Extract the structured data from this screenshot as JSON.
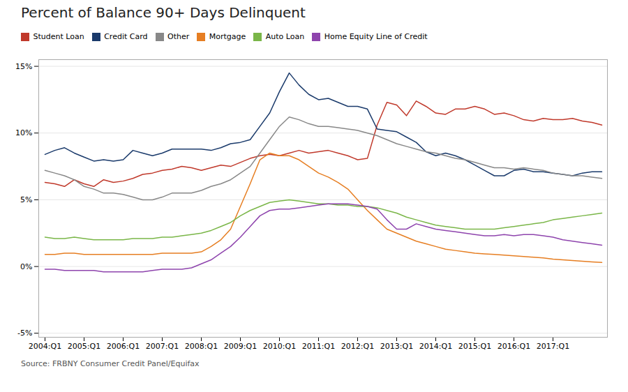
{
  "chart_data": {
    "type": "line",
    "title": "Percent of Balance 90+ Days Delinquent",
    "source": "Source: FRBNY Consumer Credit Panel/Equifax",
    "categories": [
      "2004:Q1",
      null,
      null,
      null,
      "2005:Q1",
      null,
      null,
      null,
      "2006:Q1",
      null,
      null,
      null,
      "2007:Q1",
      null,
      null,
      null,
      "2008:Q1",
      null,
      null,
      null,
      "2009:Q1",
      null,
      null,
      null,
      "2010:Q1",
      null,
      null,
      null,
      "2011:Q1",
      null,
      null,
      null,
      "2012:Q1",
      null,
      null,
      null,
      "2013:Q1",
      null,
      null,
      null,
      "2014:Q1",
      null,
      null,
      null,
      "2015:Q1",
      null,
      null,
      null,
      "2016:Q1",
      null,
      null,
      null,
      "2017:Q1",
      null,
      null,
      null,
      null,
      null
    ],
    "ylim": [
      -5.3,
      15.5
    ],
    "yticks": [
      {
        "value": -5,
        "label": "-5%"
      },
      {
        "value": 0,
        "label": "0%"
      },
      {
        "value": 5,
        "label": "5%"
      },
      {
        "value": 10,
        "label": "10%"
      },
      {
        "value": 15,
        "label": "15%"
      }
    ],
    "grid": true,
    "legend": "top",
    "series": [
      {
        "name": "Student Loan",
        "color": "#c0392b",
        "values": [
          6.3,
          6.2,
          6.0,
          6.5,
          6.2,
          6.0,
          6.5,
          6.3,
          6.4,
          6.6,
          6.9,
          7.0,
          7.2,
          7.3,
          7.5,
          7.4,
          7.2,
          7.4,
          7.6,
          7.5,
          7.8,
          8.1,
          8.3,
          8.4,
          8.3,
          8.5,
          8.7,
          8.5,
          8.6,
          8.7,
          8.5,
          8.3,
          8.0,
          8.1,
          10.6,
          12.3,
          12.1,
          11.3,
          12.4,
          12.0,
          11.5,
          11.4,
          11.8,
          11.8,
          12.0,
          11.8,
          11.4,
          11.5,
          11.3,
          11.0,
          10.9,
          11.1,
          11.0,
          11.0,
          11.1,
          10.9,
          10.8,
          10.6
        ]
      },
      {
        "name": "Credit Card",
        "color": "#1a3a6b",
        "values": [
          8.4,
          8.7,
          8.9,
          8.5,
          8.2,
          7.9,
          8.0,
          7.9,
          8.0,
          8.7,
          8.5,
          8.3,
          8.5,
          8.8,
          8.8,
          8.8,
          8.8,
          8.7,
          8.9,
          9.2,
          9.3,
          9.5,
          10.5,
          11.5,
          13.1,
          14.5,
          13.6,
          12.9,
          12.5,
          12.6,
          12.3,
          12.0,
          12.0,
          11.8,
          10.3,
          10.2,
          10.1,
          9.7,
          9.3,
          8.6,
          8.3,
          8.5,
          8.3,
          8.0,
          7.6,
          7.2,
          6.8,
          6.8,
          7.2,
          7.3,
          7.1,
          7.1,
          7.0,
          6.9,
          6.8,
          7.0,
          7.1,
          7.1
        ]
      },
      {
        "name": "Other",
        "color": "#888888",
        "values": [
          7.2,
          7.0,
          6.8,
          6.5,
          6.0,
          5.8,
          5.5,
          5.5,
          5.4,
          5.2,
          5.0,
          5.0,
          5.2,
          5.5,
          5.5,
          5.5,
          5.7,
          6.0,
          6.2,
          6.5,
          7.0,
          7.5,
          8.5,
          9.5,
          10.5,
          11.2,
          11.0,
          10.7,
          10.5,
          10.5,
          10.4,
          10.3,
          10.2,
          10.0,
          9.8,
          9.5,
          9.2,
          9.0,
          8.8,
          8.6,
          8.5,
          8.3,
          8.1,
          8.0,
          7.8,
          7.6,
          7.4,
          7.4,
          7.3,
          7.4,
          7.3,
          7.2,
          7.0,
          6.9,
          6.8,
          6.8,
          6.7,
          6.6
        ]
      },
      {
        "name": "Mortgage",
        "color": "#e67e22",
        "values": [
          0.9,
          0.9,
          1.0,
          1.0,
          0.9,
          0.9,
          0.9,
          0.9,
          0.9,
          0.9,
          0.9,
          0.9,
          1.0,
          1.0,
          1.0,
          1.0,
          1.1,
          1.5,
          2.0,
          2.8,
          4.5,
          6.2,
          8.0,
          8.5,
          8.3,
          8.3,
          8.0,
          7.5,
          7.0,
          6.7,
          6.3,
          5.8,
          5.0,
          4.2,
          3.5,
          2.8,
          2.5,
          2.2,
          1.9,
          1.7,
          1.5,
          1.3,
          1.2,
          1.1,
          1.0,
          0.95,
          0.9,
          0.85,
          0.8,
          0.75,
          0.7,
          0.65,
          0.55,
          0.5,
          0.45,
          0.4,
          0.35,
          0.3
        ]
      },
      {
        "name": "Auto Loan",
        "color": "#7ab648",
        "values": [
          2.2,
          2.1,
          2.1,
          2.2,
          2.1,
          2.0,
          2.0,
          2.0,
          2.0,
          2.1,
          2.1,
          2.1,
          2.2,
          2.2,
          2.3,
          2.4,
          2.5,
          2.7,
          3.0,
          3.3,
          3.8,
          4.2,
          4.5,
          4.8,
          4.9,
          5.0,
          4.9,
          4.8,
          4.7,
          4.7,
          4.6,
          4.6,
          4.5,
          4.5,
          4.4,
          4.2,
          4.0,
          3.7,
          3.5,
          3.3,
          3.1,
          3.0,
          2.9,
          2.8,
          2.8,
          2.8,
          2.8,
          2.9,
          3.0,
          3.1,
          3.2,
          3.3,
          3.5,
          3.6,
          3.7,
          3.8,
          3.9,
          4.0
        ]
      },
      {
        "name": "Home Equity Line of Credit",
        "color": "#8e44ad",
        "values": [
          -0.2,
          -0.2,
          -0.3,
          -0.3,
          -0.3,
          -0.3,
          -0.4,
          -0.4,
          -0.4,
          -0.4,
          -0.4,
          -0.3,
          -0.2,
          -0.2,
          -0.2,
          -0.1,
          0.2,
          0.5,
          1.0,
          1.5,
          2.2,
          3.0,
          3.8,
          4.2,
          4.3,
          4.3,
          4.4,
          4.5,
          4.6,
          4.7,
          4.7,
          4.7,
          4.6,
          4.5,
          4.3,
          3.5,
          2.8,
          2.8,
          3.2,
          3.0,
          2.8,
          2.7,
          2.6,
          2.5,
          2.4,
          2.3,
          2.3,
          2.4,
          2.3,
          2.4,
          2.4,
          2.3,
          2.2,
          2.0,
          1.9,
          1.8,
          1.7,
          1.6
        ]
      }
    ]
  }
}
